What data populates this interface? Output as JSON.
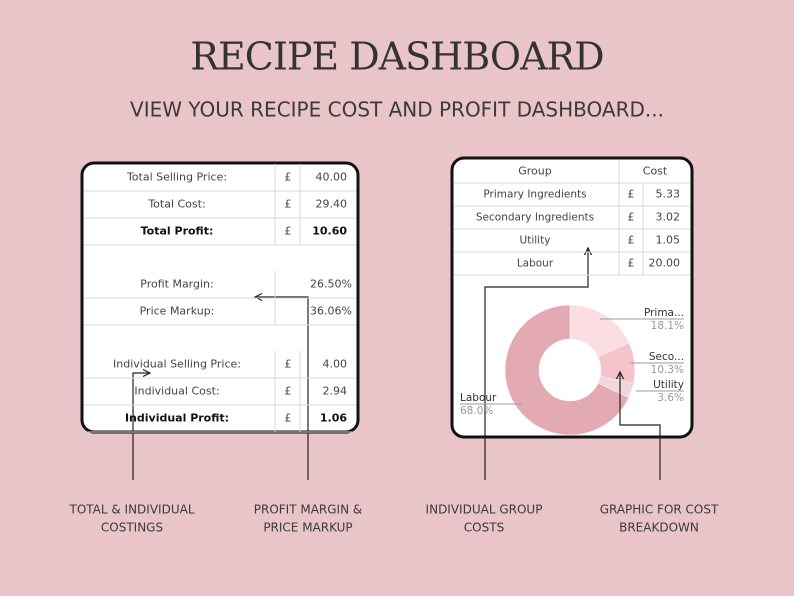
{
  "header": {
    "title": "RECIPE DASHBOARD",
    "subtitle": "VIEW YOUR RECIPE COST AND PROFIT DASHBOARD..."
  },
  "left_table": {
    "groups": [
      [
        [
          "Total Selling Price:",
          "£",
          "40.00"
        ],
        [
          "Total Cost:",
          "£",
          "29.40"
        ],
        [
          "Total Profit:",
          "£",
          "10.60"
        ]
      ],
      [
        [
          "Profit Margin:",
          "26.50%"
        ],
        [
          "Price Markup:",
          "36.06%"
        ]
      ],
      [
        [
          "Individual Selling Price:",
          "£",
          "4.00"
        ],
        [
          "Individual Cost:",
          "£",
          "2.94"
        ],
        [
          "Individual Profit:",
          "£",
          "1.06"
        ]
      ]
    ]
  },
  "right_table": {
    "header": [
      "Group",
      "Cost"
    ],
    "rows": [
      [
        "Primary Ingredients",
        "£",
        "5.33"
      ],
      [
        "Secondary Ingredients",
        "£",
        "3.02"
      ],
      [
        "Utility",
        "£",
        "1.05"
      ],
      [
        "Labour",
        "£",
        "20.00"
      ]
    ]
  },
  "chart_data": {
    "type": "pie",
    "categories": [
      "Prima...",
      "Seco...",
      "Utility",
      "Labour"
    ],
    "values": [
      18.1,
      10.3,
      3.6,
      68.0
    ],
    "value_labels": [
      "18.1%",
      "10.3%",
      "3.6%",
      "68.0%"
    ],
    "colors": [
      "#fbdde2",
      "#f4c3cb",
      "#efd7db",
      "#e4aab3"
    ],
    "donut": true
  },
  "captions": [
    [
      "TOTAL & INDIVIDUAL",
      "COSTINGS"
    ],
    [
      "PROFIT MARGIN &",
      "PRICE MARKUP"
    ],
    [
      "INDIVIDUAL GROUP",
      "COSTS"
    ],
    [
      "GRAPHIC FOR COST",
      "BREAKDOWN"
    ]
  ]
}
